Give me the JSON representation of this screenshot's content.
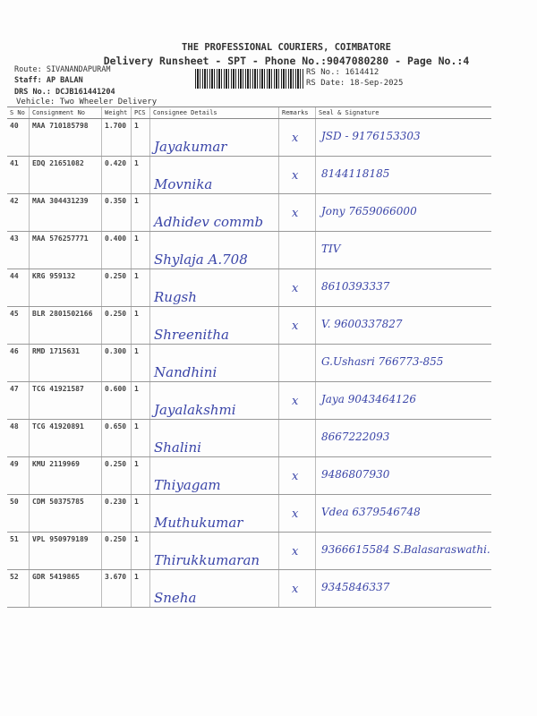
{
  "header": {
    "company": "THE PROFESSIONAL COURIERS, COIMBATORE",
    "subtitle": "Delivery Runsheet - SPT - Phone No.:9047080280 - Page No.:4",
    "route": "Route: SIVANANDAPURAM",
    "staff": "Staff: AP BALAN",
    "drs_no": "DRS No.: DCJB161441204",
    "vehicle": "Vehicle: Two Wheeler Delivery",
    "rs_no": "RS No.: 1614412",
    "rs_date": "RS Date: 18-Sep-2025"
  },
  "columns": [
    "S No",
    "Consignment No",
    "Weight",
    "PCS",
    "Consignee Details",
    "Remarks",
    "Seal & Signature"
  ],
  "rows": [
    {
      "sno": "40",
      "cno": "MAA 710185798",
      "weight": "1.700",
      "pcs": "1",
      "name": "Jayakumar",
      "remark": "x",
      "sig": "JSD - 9176153303"
    },
    {
      "sno": "41",
      "cno": "EDQ 21651082",
      "weight": "0.420",
      "pcs": "1",
      "name": "Movnika",
      "remark": "x",
      "sig": "8144118185"
    },
    {
      "sno": "42",
      "cno": "MAA 304431239",
      "weight": "0.350",
      "pcs": "1",
      "name": "Adhidev commb",
      "remark": "x",
      "sig": "Jony 7659066000"
    },
    {
      "sno": "43",
      "cno": "MAA 576257771",
      "weight": "0.400",
      "pcs": "1",
      "name": "Shylaja A.708",
      "remark": "",
      "sig": "TIV"
    },
    {
      "sno": "44",
      "cno": "KRG 959132",
      "weight": "0.250",
      "pcs": "1",
      "name": "Rugsh",
      "remark": "x",
      "sig": "8610393337"
    },
    {
      "sno": "45",
      "cno": "BLR 2801502166",
      "weight": "0.250",
      "pcs": "1",
      "name": "Shreenitha",
      "remark": "x",
      "sig": "V. 9600337827"
    },
    {
      "sno": "46",
      "cno": "RMD 1715631",
      "weight": "0.300",
      "pcs": "1",
      "name": "Nandhini",
      "remark": "",
      "sig": "G.Ushasri 766773-855"
    },
    {
      "sno": "47",
      "cno": "TCG 41921587",
      "weight": "0.600",
      "pcs": "1",
      "name": "Jayalakshmi",
      "remark": "x",
      "sig": "Jaya 9043464126"
    },
    {
      "sno": "48",
      "cno": "TCG 41920891",
      "weight": "0.650",
      "pcs": "1",
      "name": "Shalini",
      "remark": "",
      "sig": "8667222093"
    },
    {
      "sno": "49",
      "cno": "KMU 2119969",
      "weight": "0.250",
      "pcs": "1",
      "name": "Thiyagam",
      "remark": "x",
      "sig": "9486807930"
    },
    {
      "sno": "50",
      "cno": "CDM 50375785",
      "weight": "0.230",
      "pcs": "1",
      "name": "Muthukumar",
      "remark": "x",
      "sig": "Vdea 6379546748"
    },
    {
      "sno": "51",
      "cno": "VPL 950979189",
      "weight": "0.250",
      "pcs": "1",
      "name": "Thirukkumaran",
      "remark": "x",
      "sig": "9366615584 S.Balasaraswathi."
    },
    {
      "sno": "52",
      "cno": "GDR 5419865",
      "weight": "3.670",
      "pcs": "1",
      "name": "Sneha",
      "remark": "x",
      "sig": "9345846337"
    }
  ],
  "colors": {
    "ink": "#3a45a8",
    "print": "#333333"
  }
}
